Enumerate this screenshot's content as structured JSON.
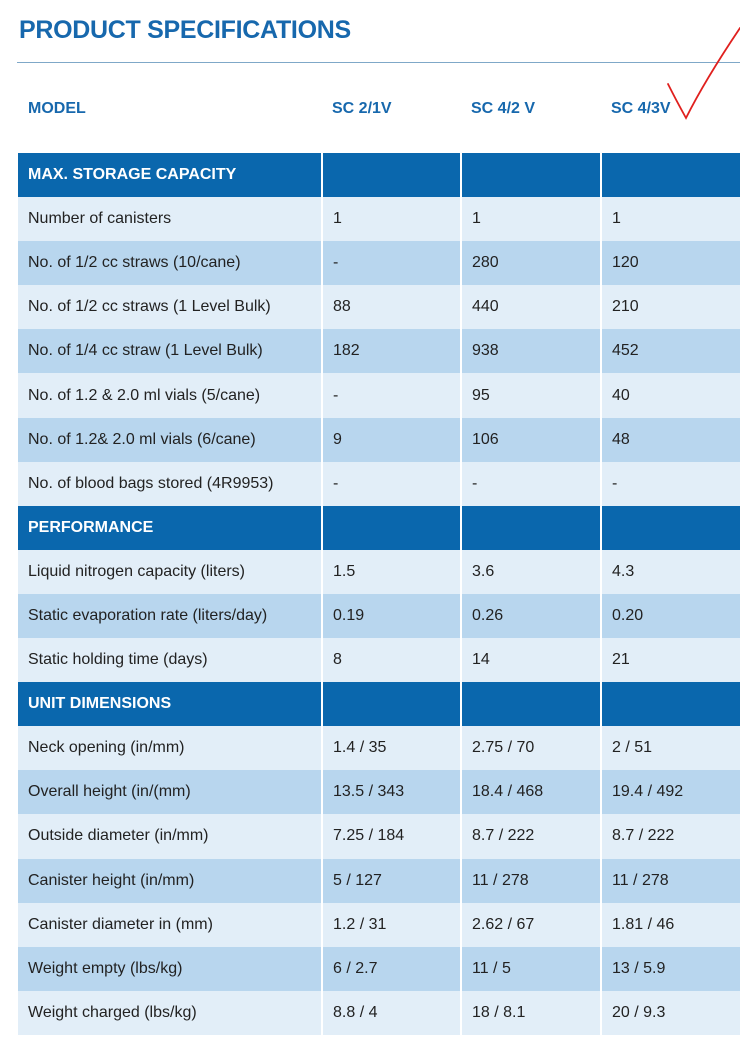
{
  "title": "PRODUCT SPECIFICATIONS",
  "header": {
    "model_label": "MODEL",
    "models": [
      "SC 2/1V",
      "SC 4/2 V",
      "SC 4/3V"
    ]
  },
  "sections": [
    {
      "name": "MAX. STORAGE CAPACITY",
      "rows": [
        [
          "Number of canisters",
          "1",
          "1",
          "1"
        ],
        [
          "No. of 1/2 cc straws (10/cane)",
          "-",
          "280",
          "120"
        ],
        [
          "No. of 1/2 cc straws (1 Level Bulk)",
          "88",
          "440",
          "210"
        ],
        [
          "No. of 1/4 cc straw (1 Level Bulk)",
          "182",
          "938",
          "452"
        ],
        [
          "No. of 1.2 & 2.0 ml vials (5/cane)",
          "-",
          "95",
          "40"
        ],
        [
          "No. of 1.2& 2.0 ml vials (6/cane)",
          "9",
          "106",
          "48"
        ],
        [
          "No. of blood bags stored (4R9953)",
          "-",
          "-",
          "-"
        ]
      ]
    },
    {
      "name": "PERFORMANCE",
      "rows": [
        [
          "Liquid nitrogen capacity (liters)",
          "1.5",
          "3.6",
          "4.3"
        ],
        [
          "Static evaporation rate (liters/day)",
          "0.19",
          "0.26",
          "0.20"
        ],
        [
          "Static holding time (days)",
          "8",
          "14",
          "21"
        ]
      ]
    },
    {
      "name": "UNIT DIMENSIONS",
      "rows": [
        [
          "Neck opening (in/mm)",
          "1.4 / 35",
          "2.75 / 70",
          "2 / 51"
        ],
        [
          "Overall height (in/(mm)",
          "13.5 / 343",
          "18.4 / 468",
          "19.4 / 492"
        ],
        [
          "Outside diameter (in/mm)",
          "7.25 / 184",
          "8.7 / 222",
          "8.7 / 222"
        ],
        [
          "Canister height (in/mm)",
          "5 / 127",
          "11 / 278",
          "11 / 278"
        ],
        [
          "Canister diameter in (mm)",
          "1.2 / 31",
          "2.62 / 67",
          "1.81 / 46"
        ],
        [
          "Weight empty (lbs/kg)",
          "6 / 2.7",
          "11 / 5",
          "13 / 5.9"
        ],
        [
          "Weight charged (lbs/kg)",
          "8.8 / 4",
          "18 / 8.1",
          "20 / 9.3"
        ]
      ]
    }
  ],
  "colors": {
    "accent": "#1768ad",
    "section": "#0a67ad",
    "row_light": "#e2eef8",
    "row_dark": "#b8d6ee",
    "check": "#e0201e"
  }
}
